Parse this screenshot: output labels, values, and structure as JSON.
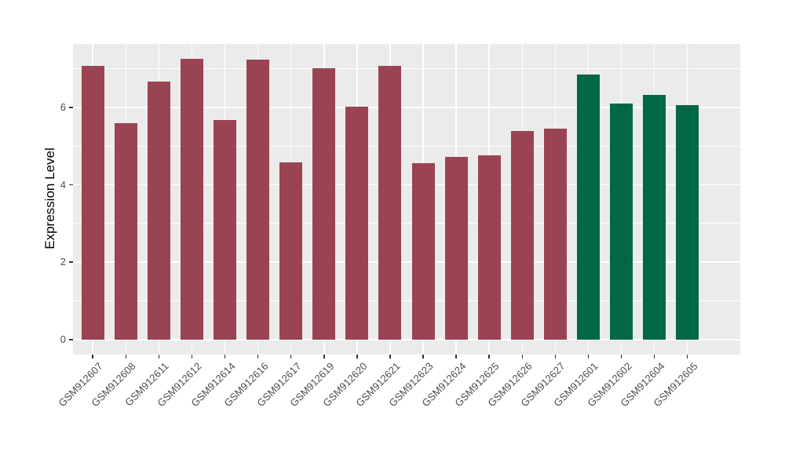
{
  "figure": {
    "background": "#FFFFFF"
  },
  "chart_data": {
    "type": "bar",
    "title": "",
    "ylabel": "Expression Level",
    "xlabel": "",
    "categories": [
      "GSM912607",
      "GSM912608",
      "GSM912611",
      "GSM912612",
      "GSM912614",
      "GSM912616",
      "GSM912617",
      "GSM912619",
      "GSM912620",
      "GSM912621",
      "GSM912623",
      "GSM912624",
      "GSM912625",
      "GSM912626",
      "GSM912627",
      "GSM912601",
      "GSM912602",
      "GSM912604",
      "GSM912605"
    ],
    "values": [
      7.08,
      5.59,
      6.66,
      7.25,
      5.67,
      7.24,
      4.57,
      7.02,
      6.01,
      7.08,
      4.56,
      4.72,
      4.77,
      5.39,
      5.45,
      6.85,
      6.1,
      6.32,
      6.06
    ],
    "bar_colors": [
      "#9A4352",
      "#9A4352",
      "#9A4352",
      "#9A4352",
      "#9A4352",
      "#9A4352",
      "#9A4352",
      "#9A4352",
      "#9A4352",
      "#9A4352",
      "#9A4352",
      "#9A4352",
      "#9A4352",
      "#9A4352",
      "#9A4352",
      "#006747",
      "#006747",
      "#006747",
      "#006747"
    ],
    "accent_colors": {
      "maroon": "#9A4352",
      "green": "#006747"
    },
    "yticks": [
      0,
      2,
      4,
      6
    ],
    "yticks_minor": [
      1,
      3,
      5,
      7
    ],
    "ylim": [
      -0.39,
      7.64
    ],
    "bar_width_frac": 0.7,
    "grid": true,
    "legend_position": "none",
    "panel_background": "#EBEBEB",
    "grid_color": "#FFFFFF",
    "tick_label_color": "#4D4D4D"
  }
}
